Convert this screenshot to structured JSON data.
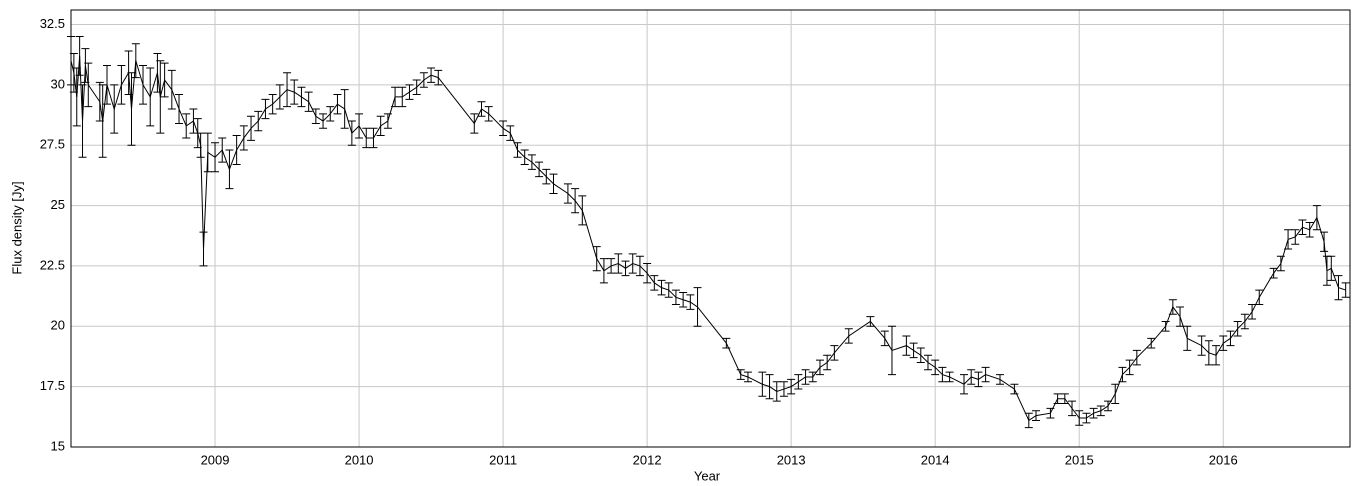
{
  "chart_data": {
    "type": "errorbar_line",
    "x_label": "Year",
    "y_label": "Flux density [Jy]",
    "xlim": [
      2008.0,
      2016.88
    ],
    "ylim": [
      15,
      33.1
    ],
    "xticks": [
      2009,
      2010,
      2011,
      2012,
      2013,
      2014,
      2015,
      2016
    ],
    "yticks": [
      15,
      17.5,
      20,
      22.5,
      25,
      27.5,
      30,
      32.5
    ],
    "grid": true,
    "series": [
      {
        "color": "#000000",
        "x": [
          2008.0,
          2008.02,
          2008.04,
          2008.06,
          2008.08,
          2008.1,
          2008.12,
          2008.2,
          2008.22,
          2008.25,
          2008.3,
          2008.35,
          2008.4,
          2008.42,
          2008.45,
          2008.5,
          2008.55,
          2008.6,
          2008.62,
          2008.65,
          2008.7,
          2008.75,
          2008.8,
          2008.85,
          2008.88,
          2008.9,
          2008.92,
          2008.95,
          2009.0,
          2009.05,
          2009.1,
          2009.15,
          2009.2,
          2009.25,
          2009.3,
          2009.35,
          2009.4,
          2009.45,
          2009.5,
          2009.55,
          2009.6,
          2009.65,
          2009.7,
          2009.75,
          2009.8,
          2009.85,
          2009.9,
          2009.95,
          2010.0,
          2010.05,
          2010.1,
          2010.15,
          2010.2,
          2010.25,
          2010.3,
          2010.35,
          2010.4,
          2010.45,
          2010.5,
          2010.55,
          2010.8,
          2010.85,
          2010.9,
          2011.0,
          2011.05,
          2011.1,
          2011.15,
          2011.2,
          2011.25,
          2011.3,
          2011.35,
          2011.45,
          2011.5,
          2011.55,
          2011.65,
          2011.7,
          2011.75,
          2011.8,
          2011.85,
          2011.9,
          2011.95,
          2012.0,
          2012.05,
          2012.1,
          2012.15,
          2012.2,
          2012.25,
          2012.3,
          2012.35,
          2012.55,
          2012.65,
          2012.7,
          2012.8,
          2012.85,
          2012.9,
          2012.95,
          2013.0,
          2013.05,
          2013.1,
          2013.15,
          2013.2,
          2013.25,
          2013.3,
          2013.4,
          2013.55,
          2013.65,
          2013.7,
          2013.8,
          2013.85,
          2013.9,
          2013.95,
          2014.0,
          2014.05,
          2014.1,
          2014.2,
          2014.25,
          2014.3,
          2014.35,
          2014.45,
          2014.55,
          2014.65,
          2014.7,
          2014.8,
          2014.85,
          2014.9,
          2014.95,
          2015.0,
          2015.05,
          2015.1,
          2015.15,
          2015.2,
          2015.25,
          2015.3,
          2015.35,
          2015.4,
          2015.5,
          2015.6,
          2015.65,
          2015.7,
          2015.75,
          2015.85,
          2015.9,
          2015.95,
          2016.0,
          2016.05,
          2016.1,
          2016.15,
          2016.2,
          2016.25,
          2016.35,
          2016.4,
          2016.45,
          2016.5,
          2016.55,
          2016.6,
          2016.65,
          2016.7,
          2016.72,
          2016.75,
          2016.8,
          2016.85
        ],
        "values": [
          31.0,
          30.5,
          29.5,
          31.2,
          28.5,
          30.8,
          30.0,
          29.3,
          28.5,
          30.0,
          29.0,
          30.0,
          30.5,
          29.0,
          31.0,
          30.0,
          29.5,
          30.5,
          29.5,
          30.2,
          29.8,
          29.0,
          28.3,
          28.5,
          28.0,
          27.5,
          23.2,
          27.2,
          27.0,
          27.3,
          26.5,
          27.3,
          27.8,
          28.2,
          28.5,
          29.0,
          29.2,
          29.5,
          29.8,
          29.7,
          29.5,
          29.3,
          28.7,
          28.5,
          28.8,
          29.2,
          29.0,
          28.0,
          28.3,
          27.8,
          27.8,
          28.3,
          28.5,
          29.5,
          29.5,
          29.7,
          29.9,
          30.2,
          30.4,
          30.3,
          28.4,
          29.0,
          28.8,
          28.2,
          28.0,
          27.3,
          27.0,
          26.8,
          26.5,
          26.2,
          25.9,
          25.5,
          25.2,
          24.8,
          22.8,
          22.3,
          22.5,
          22.6,
          22.4,
          22.6,
          22.5,
          22.2,
          21.8,
          21.6,
          21.5,
          21.2,
          21.1,
          21.0,
          20.8,
          19.3,
          18.0,
          17.9,
          17.6,
          17.5,
          17.3,
          17.4,
          17.5,
          17.7,
          17.9,
          17.9,
          18.3,
          18.5,
          18.9,
          19.6,
          20.2,
          19.5,
          19.0,
          19.2,
          19.0,
          18.8,
          18.5,
          18.3,
          18.0,
          17.9,
          17.6,
          17.9,
          17.8,
          18.0,
          17.8,
          17.4,
          16.1,
          16.3,
          16.4,
          17.0,
          17.0,
          16.6,
          16.2,
          16.2,
          16.4,
          16.5,
          16.7,
          17.2,
          18.0,
          18.3,
          18.7,
          19.3,
          20.0,
          20.8,
          20.4,
          19.5,
          19.2,
          18.9,
          18.8,
          19.3,
          19.5,
          19.9,
          20.2,
          20.6,
          21.2,
          22.2,
          22.6,
          23.6,
          23.7,
          24.1,
          24.0,
          24.5,
          23.5,
          22.3,
          22.4,
          21.6,
          21.5
        ],
        "errors": [
          1.0,
          0.8,
          1.2,
          0.8,
          1.5,
          0.7,
          0.9,
          0.8,
          1.5,
          0.8,
          1.0,
          0.8,
          0.9,
          1.5,
          0.7,
          0.8,
          1.2,
          0.8,
          1.5,
          0.7,
          0.8,
          0.6,
          0.5,
          0.5,
          0.6,
          0.5,
          0.7,
          0.8,
          0.6,
          0.5,
          0.8,
          0.6,
          0.5,
          0.5,
          0.4,
          0.4,
          0.4,
          0.5,
          0.7,
          0.5,
          0.4,
          0.4,
          0.3,
          0.3,
          0.3,
          0.4,
          0.8,
          0.5,
          0.5,
          0.4,
          0.4,
          0.4,
          0.3,
          0.4,
          0.4,
          0.3,
          0.3,
          0.3,
          0.3,
          0.3,
          0.4,
          0.3,
          0.3,
          0.3,
          0.3,
          0.3,
          0.3,
          0.3,
          0.3,
          0.3,
          0.4,
          0.4,
          0.5,
          0.6,
          0.5,
          0.5,
          0.3,
          0.4,
          0.3,
          0.4,
          0.4,
          0.4,
          0.3,
          0.3,
          0.3,
          0.3,
          0.3,
          0.3,
          0.8,
          0.2,
          0.2,
          0.2,
          0.5,
          0.5,
          0.4,
          0.3,
          0.3,
          0.3,
          0.3,
          0.2,
          0.3,
          0.3,
          0.3,
          0.3,
          0.2,
          0.3,
          1.0,
          0.4,
          0.3,
          0.3,
          0.3,
          0.3,
          0.3,
          0.2,
          0.4,
          0.3,
          0.3,
          0.3,
          0.2,
          0.2,
          0.3,
          0.2,
          0.2,
          0.2,
          0.2,
          0.3,
          0.3,
          0.2,
          0.2,
          0.2,
          0.2,
          0.4,
          0.3,
          0.3,
          0.3,
          0.2,
          0.2,
          0.3,
          0.4,
          0.5,
          0.4,
          0.5,
          0.4,
          0.3,
          0.3,
          0.3,
          0.3,
          0.3,
          0.3,
          0.2,
          0.3,
          0.4,
          0.3,
          0.3,
          0.3,
          0.5,
          0.4,
          0.6,
          0.5,
          0.5,
          0.3
        ]
      }
    ]
  }
}
